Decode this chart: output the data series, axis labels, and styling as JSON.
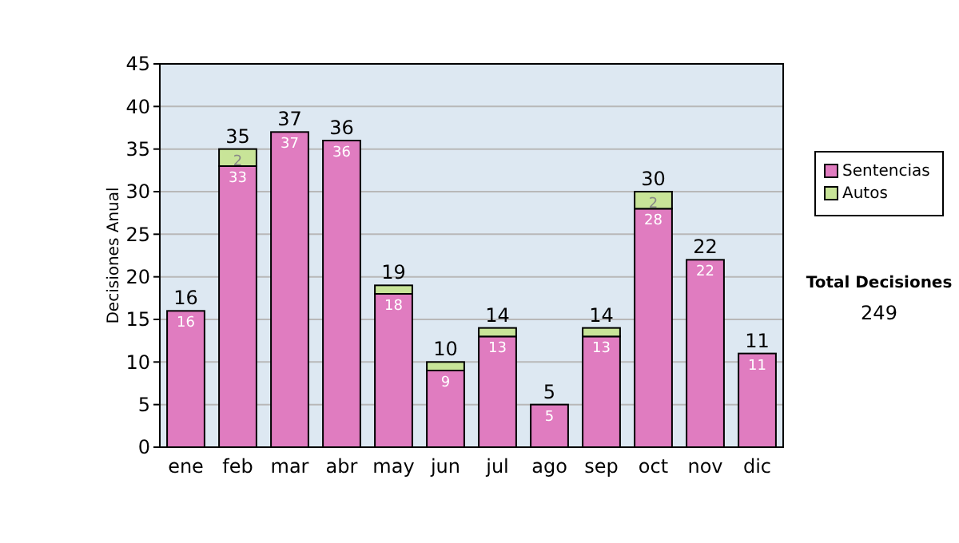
{
  "chart_data": {
    "type": "bar",
    "stacked": true,
    "ylabel": "Decisiones Anual",
    "categories": [
      "ene",
      "feb",
      "mar",
      "abr",
      "may",
      "jun",
      "jul",
      "ago",
      "sep",
      "oct",
      "nov",
      "dic"
    ],
    "series": [
      {
        "name": "Sentencias",
        "color": "#e07cc0",
        "values": [
          16,
          33,
          37,
          36,
          18,
          9,
          13,
          5,
          13,
          28,
          22,
          11
        ],
        "value_labels": [
          "16",
          "33",
          "37",
          "36",
          "18",
          "9",
          "13",
          "5",
          "13",
          "28",
          "22",
          "11"
        ]
      },
      {
        "name": "Autos",
        "color": "#c8e498",
        "values": [
          0,
          2,
          0,
          0,
          1,
          1,
          1,
          0,
          1,
          2,
          0,
          0
        ],
        "value_labels": [
          null,
          "2",
          null,
          null,
          null,
          null,
          null,
          null,
          null,
          "2",
          null,
          null
        ]
      }
    ],
    "totals": [
      "16",
      "35",
      "37",
      "36",
      "19",
      "10",
      "14",
      "5",
      "14",
      "30",
      "22",
      "11"
    ],
    "ylim": [
      0,
      45
    ],
    "yticks": [
      0,
      5,
      10,
      15,
      20,
      25,
      30,
      35,
      40,
      45
    ],
    "grid": "y",
    "legend": "right",
    "annotations": [
      "Total Decisiones",
      "249"
    ]
  }
}
